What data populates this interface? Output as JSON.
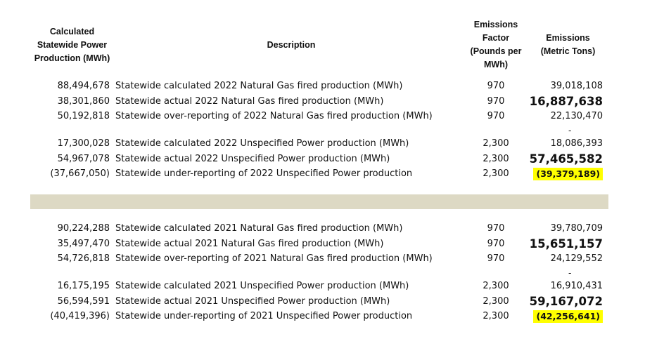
{
  "headers": {
    "production": [
      "Calculated",
      "Statewide Power",
      "Production (MWh)"
    ],
    "description": [
      "Description"
    ],
    "factor": [
      "Emissions",
      "Factor",
      "(Pounds per",
      "MWh)"
    ],
    "emissions": [
      "Emissions",
      "(Metric Tons)"
    ]
  },
  "section_2022": [
    {
      "prod": "88,494,678",
      "desc": "Statewide calculated 2022 Natural Gas fired production (MWh)",
      "factor": "970",
      "em": "39,018,108"
    },
    {
      "prod": "38,301,860",
      "desc": "Statewide actual 2022 Natural Gas fired production  (MWh)",
      "factor": "970",
      "em": "16,887,638"
    },
    {
      "prod": "50,192,818",
      "desc": "Statewide over-reporting of 2022 Natural Gas fired production (MWh)",
      "factor": "970",
      "em": "22,130,470"
    },
    {
      "prod": "17,300,028",
      "desc": "Statewide calculated 2022 Unspecified Power production (MWh)",
      "factor": "2,300",
      "em": "18,086,393"
    },
    {
      "prod": "54,967,078",
      "desc": "Statewide actual 2022 Unspecified Power production (MWh)",
      "factor": "2,300",
      "em": "57,465,582"
    },
    {
      "prod": "(37,667,050)",
      "desc": "Statewide under-reporting of 2022 Unspecified Power production",
      "factor": "2,300",
      "em": "(39,379,189)"
    }
  ],
  "section_2021": [
    {
      "prod": "90,224,288",
      "desc": "Statewide calculated 2021 Natural Gas fired production (MWh)",
      "factor": "970",
      "em": "39,780,709"
    },
    {
      "prod": "35,497,470",
      "desc": "Statewide actual 2021 Natural Gas fired production  (MWh)",
      "factor": "970",
      "em": "15,651,157"
    },
    {
      "prod": "54,726,818",
      "desc": "Statewide over-reporting of 2021 Natural Gas fired production (MWh)",
      "factor": "970",
      "em": "24,129,552"
    },
    {
      "prod": "16,175,195",
      "desc": "Statewide calculated 2021 Unspecified Power production (MWh)",
      "factor": "2,300",
      "em": "16,910,431"
    },
    {
      "prod": "56,594,591",
      "desc": "Statewide actual 2021 Unspecified Power production (MWh)",
      "factor": "2,300",
      "em": "59,167,072"
    },
    {
      "prod": "(40,419,396)",
      "desc": "Statewide under-reporting of 2021 Unspecified Power production",
      "factor": "2,300",
      "em": "(42,256,641)"
    }
  ],
  "dash": "-",
  "highlight_color": "#ffff00",
  "separator_color": "#ddd9c4"
}
